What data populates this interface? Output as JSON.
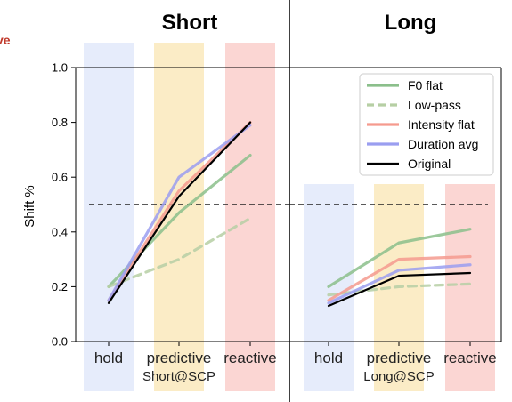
{
  "panels": {
    "left_title": "Short",
    "right_title": "Long"
  },
  "edge_label": "ve",
  "chart_data": [
    {
      "type": "line",
      "title": "Short",
      "ylabel": "Shift %",
      "ylim": [
        0.0,
        1.0
      ],
      "yticks": [
        "0.0",
        "0.2",
        "0.4",
        "0.6",
        "0.8",
        "1.0"
      ],
      "categories": [
        "hold",
        "predictive",
        "reactive"
      ],
      "category_sublabel": "Short@SCP",
      "reference_line": 0.5,
      "series": [
        {
          "name": "F0 flat",
          "values": [
            0.2,
            0.47,
            0.68
          ],
          "color": "#8bbf8b",
          "dash": false
        },
        {
          "name": "Low-pass",
          "values": [
            0.2,
            0.3,
            0.45
          ],
          "color": "#b6cfa4",
          "dash": true
        },
        {
          "name": "Intensity flat",
          "values": [
            0.15,
            0.55,
            0.8
          ],
          "color": "#f59a8e",
          "dash": false
        },
        {
          "name": "Duration avg",
          "values": [
            0.15,
            0.6,
            0.79
          ],
          "color": "#9a9ef0",
          "dash": false
        },
        {
          "name": "Original",
          "values": [
            0.14,
            0.53,
            0.8
          ],
          "color": "#000000",
          "dash": false
        }
      ]
    },
    {
      "type": "line",
      "title": "Long",
      "ylim": [
        0.0,
        1.0
      ],
      "categories": [
        "hold",
        "predictive",
        "reactive"
      ],
      "category_sublabel": "Long@SCP",
      "reference_line": 0.5,
      "series": [
        {
          "name": "F0 flat",
          "values": [
            0.2,
            0.36,
            0.41
          ],
          "color": "#8bbf8b",
          "dash": false
        },
        {
          "name": "Low-pass",
          "values": [
            0.17,
            0.2,
            0.21
          ],
          "color": "#b6cfa4",
          "dash": true
        },
        {
          "name": "Intensity flat",
          "values": [
            0.15,
            0.3,
            0.31
          ],
          "color": "#f59a8e",
          "dash": false
        },
        {
          "name": "Duration avg",
          "values": [
            0.14,
            0.26,
            0.28
          ],
          "color": "#9a9ef0",
          "dash": false
        },
        {
          "name": "Original",
          "values": [
            0.13,
            0.24,
            0.25
          ],
          "color": "#000000",
          "dash": false
        }
      ]
    }
  ],
  "category_band_colors": [
    "#e6ecfb",
    "#fbecc6",
    "#fbd6d3"
  ],
  "legend": [
    "F0 flat",
    "Low-pass",
    "Intensity flat",
    "Duration avg",
    "Original"
  ]
}
